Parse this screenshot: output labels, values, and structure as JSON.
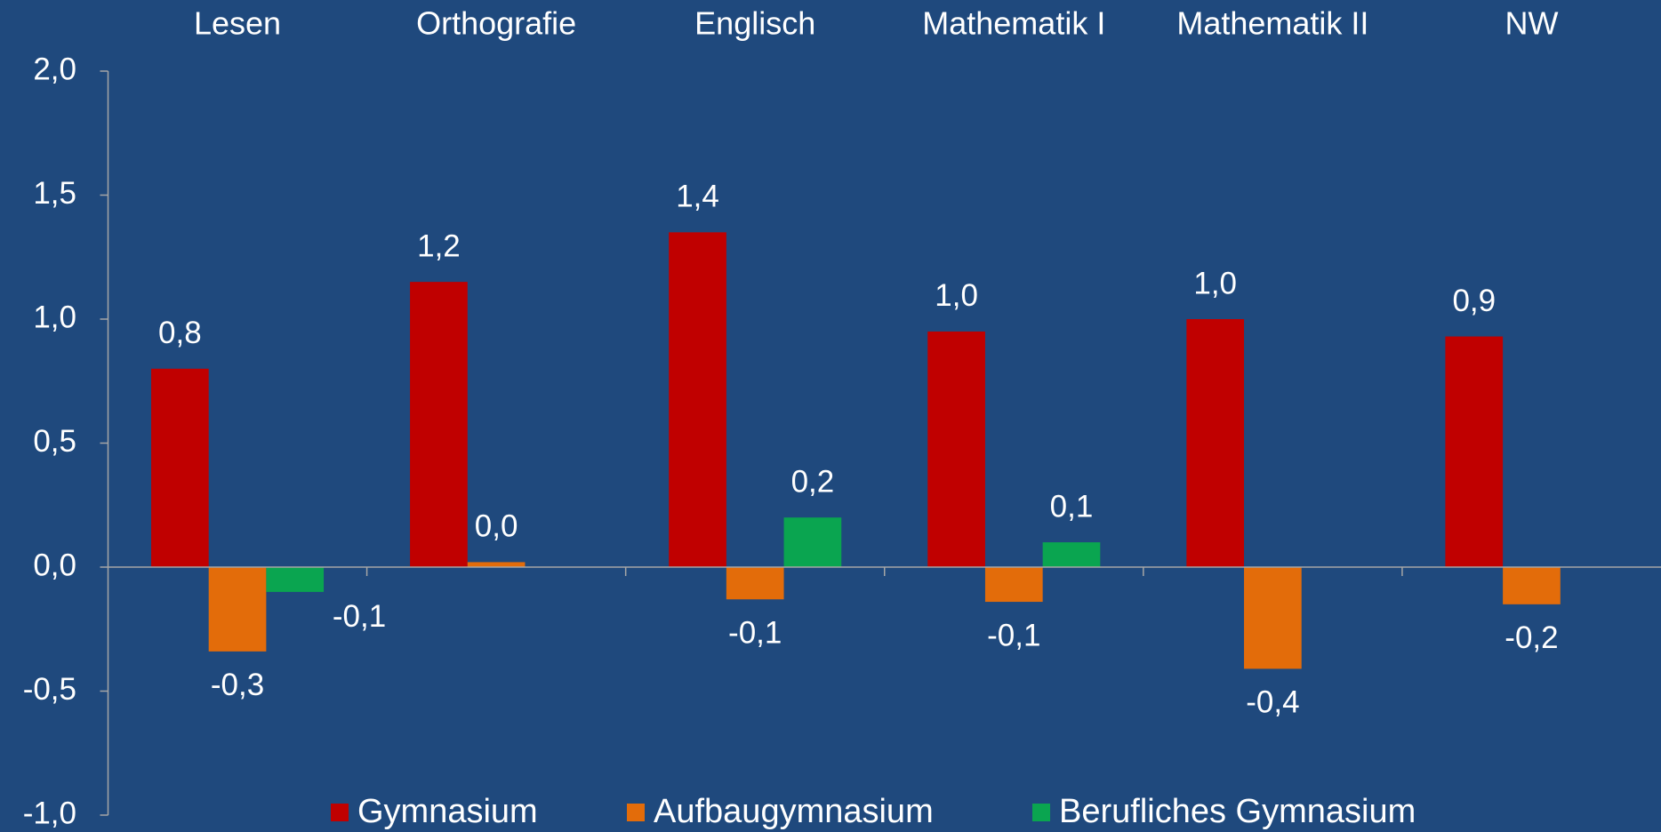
{
  "chart_data": {
    "type": "bar",
    "categories": [
      "Lesen",
      "Orthografie",
      "Englisch",
      "Mathematik I",
      "Mathematik II",
      "NW"
    ],
    "series": [
      {
        "name": "Gymnasium",
        "color": "#c00000",
        "values": [
          0.8,
          1.15,
          1.35,
          0.95,
          1.0,
          0.93
        ],
        "value_labels": [
          "0,8",
          "1,2",
          "1,4",
          "1,0",
          "1,0",
          "0,9"
        ]
      },
      {
        "name": "Aufbaugymnasium",
        "color": "#e36c0a",
        "values": [
          -0.34,
          0.02,
          -0.13,
          -0.14,
          -0.41,
          -0.15
        ],
        "value_labels": [
          "-0,3",
          "0,0",
          "-0,1",
          "-0,1",
          "-0,4",
          "-0,2"
        ]
      },
      {
        "name": "Berufliches Gymnasium",
        "color": "#0aa550",
        "values": [
          -0.1,
          null,
          0.2,
          0.1,
          null,
          null
        ],
        "value_labels": [
          "-0,1",
          null,
          "0,2",
          "0,1",
          null,
          null
        ]
      }
    ],
    "ylim": [
      -1,
      2
    ],
    "yticks": [
      {
        "value": -1,
        "label": "-1,0"
      },
      {
        "value": -0.5,
        "label": "-0,5"
      },
      {
        "value": 0,
        "label": "0,0"
      },
      {
        "value": 0.5,
        "label": "0,5"
      },
      {
        "value": 1,
        "label": "1,0"
      },
      {
        "value": 1.5,
        "label": "1,5"
      },
      {
        "value": 2,
        "label": "2,0"
      }
    ],
    "grid": false,
    "legend": "bottom"
  }
}
